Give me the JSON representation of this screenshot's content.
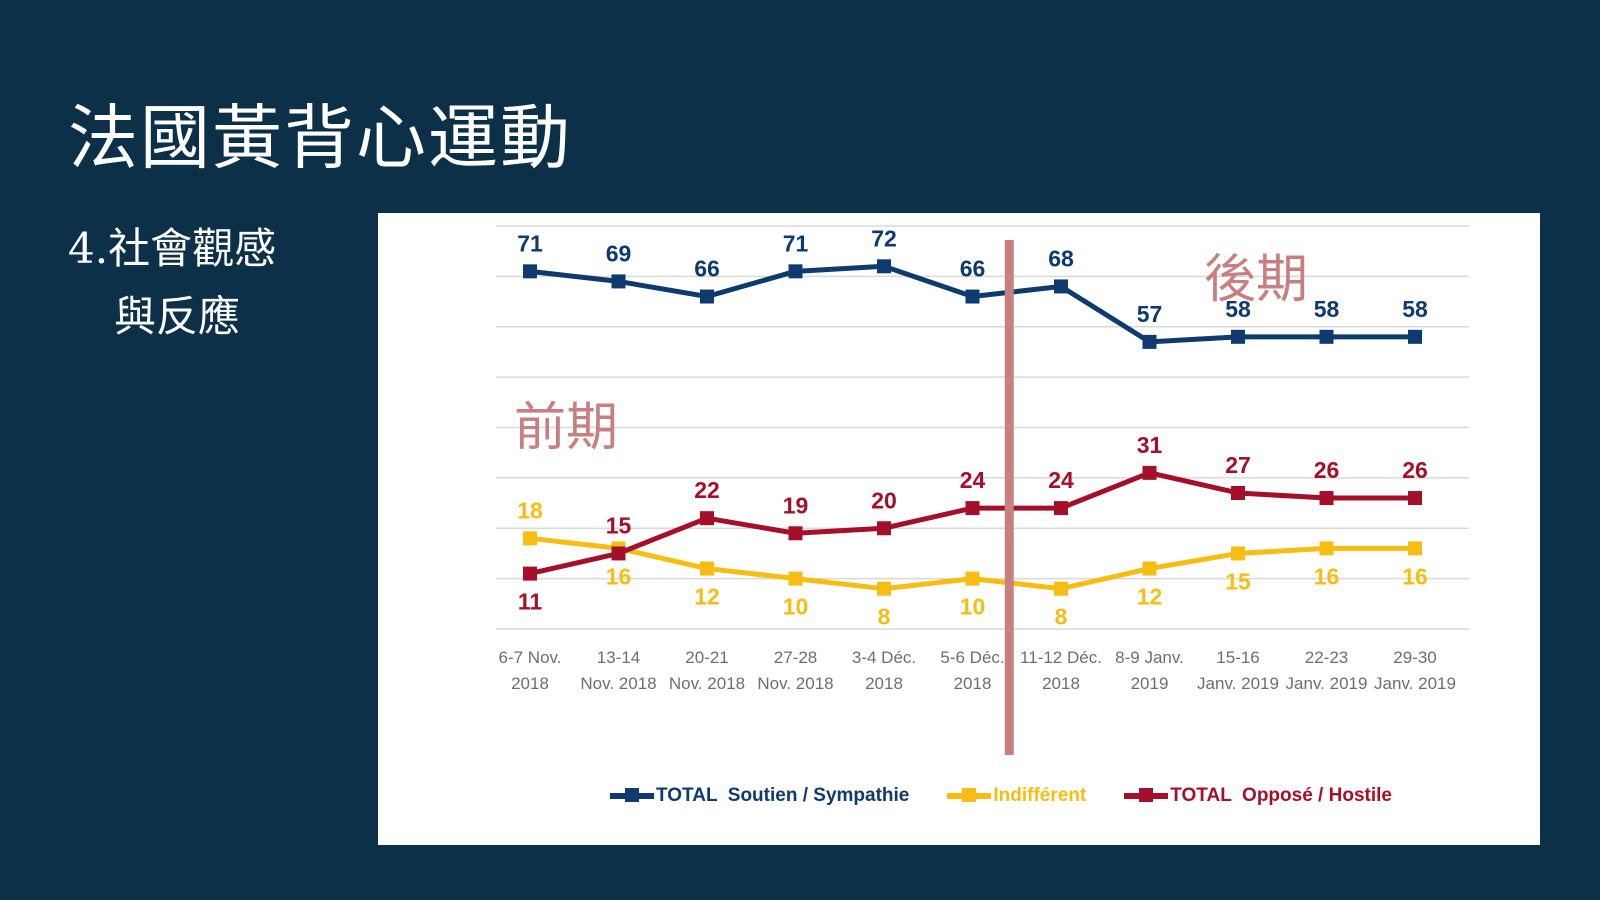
{
  "slide": {
    "title": "法國黃背心運動",
    "subtitle_line1": "4.社會觀感",
    "subtitle_line2": "與反應"
  },
  "phases": {
    "early": "前期",
    "late": "後期"
  },
  "colors": {
    "background": "#0b3047",
    "support": "#0f3a6e",
    "indifferent": "#f7bd13",
    "opposed": "#a4102a",
    "divider": "#c77f7f",
    "grid": "#d9d9d9",
    "axis_text": "#6e6e6e"
  },
  "chart_data": {
    "type": "line",
    "categories": [
      [
        "6-7 Nov.",
        "2018"
      ],
      [
        "13-14",
        "Nov. 2018"
      ],
      [
        "20-21",
        "Nov. 2018"
      ],
      [
        "27-28",
        "Nov. 2018"
      ],
      [
        "3-4 Déc.",
        "2018"
      ],
      [
        "5-6 Déc.",
        "2018"
      ],
      [
        "11-12 Déc.",
        "2018"
      ],
      [
        "8-9 Janv.",
        "2019"
      ],
      [
        "15-16",
        "Janv. 2019"
      ],
      [
        "22-23",
        "Janv. 2019"
      ],
      [
        "29-30",
        "Janv. 2019"
      ]
    ],
    "series": [
      {
        "name": "TOTAL  Soutien / Sympathie",
        "key": "support",
        "values": [
          71,
          69,
          66,
          71,
          72,
          66,
          68,
          57,
          58,
          58,
          58
        ]
      },
      {
        "name": "Indifférent",
        "key": "indifferent",
        "values": [
          18,
          16,
          12,
          10,
          8,
          10,
          8,
          12,
          15,
          16,
          16
        ]
      },
      {
        "name": "TOTAL  Opposé / Hostile",
        "key": "opposed",
        "values": [
          11,
          15,
          22,
          19,
          20,
          24,
          24,
          31,
          27,
          26,
          26
        ]
      }
    ],
    "ylim": [
      0,
      80
    ],
    "grid": true,
    "legend_position": "bottom",
    "divider_after_category": 5
  }
}
